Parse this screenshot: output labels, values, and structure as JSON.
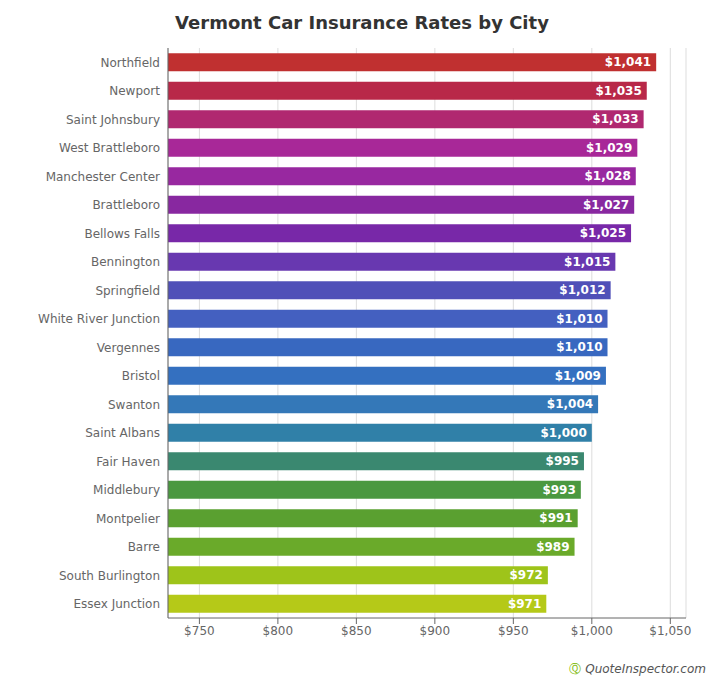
{
  "chart_data": {
    "type": "bar",
    "title": "Vermont Car Insurance Rates by City",
    "orientation": "horizontal",
    "categories": [
      "Essex Junction",
      "South Burlington",
      "Barre",
      "Montpelier",
      "Middlebury",
      "Fair Haven",
      "Saint Albans",
      "Swanton",
      "Bristol",
      "Vergennes",
      "White River Junction",
      "Springfield",
      "Bennington",
      "Bellows Falls",
      "Brattleboro",
      "Manchester Center",
      "West Brattleboro",
      "Saint Johnsbury",
      "Newport",
      "Northfield"
    ],
    "values": [
      971,
      972,
      989,
      991,
      993,
      995,
      1000,
      1004,
      1009,
      1010,
      1010,
      1012,
      1015,
      1025,
      1027,
      1028,
      1029,
      1033,
      1035,
      1041
    ],
    "value_labels": [
      "$971",
      "$972",
      "$989",
      "$991",
      "$993",
      "$995",
      "$1,000",
      "$1,004",
      "$1,009",
      "$1,010",
      "$1,010",
      "$1,012",
      "$1,015",
      "$1,025",
      "$1,027",
      "$1,028",
      "$1,029",
      "$1,033",
      "$1,035",
      "$1,041"
    ],
    "data_labels": true,
    "colors": [
      "#b5c918",
      "#9ec41a",
      "#6aaa2a",
      "#5aa030",
      "#4a9840",
      "#3a8870",
      "#3080a8",
      "#3478b8",
      "#3470c0",
      "#3868c0",
      "#4460c0",
      "#5050b8",
      "#6838b0",
      "#7828a8",
      "#8828a0",
      "#9828a0",
      "#a82898",
      "#b02870",
      "#b82848",
      "#c03030"
    ],
    "xlim": [
      730,
      1060
    ],
    "xticks": [
      {
        "value": 750,
        "label": "$750"
      },
      {
        "value": 800,
        "label": "$800"
      },
      {
        "value": 850,
        "label": "$850"
      },
      {
        "value": 900,
        "label": "$900"
      },
      {
        "value": 950,
        "label": "$950"
      },
      {
        "value": 1000,
        "label": "$1,000"
      },
      {
        "value": 1050,
        "label": "$1,050"
      }
    ],
    "grid": true,
    "annotations": [
      {
        "text": "Ⓠ",
        "color": "#7ab800"
      },
      {
        "text": "QuoteInspector.com",
        "color": "#555555"
      }
    ]
  }
}
